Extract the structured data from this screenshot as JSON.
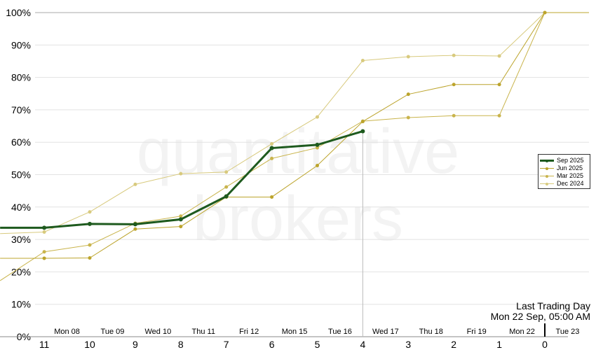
{
  "watermark": [
    "quantitative",
    "brokers"
  ],
  "chart_data": {
    "type": "line",
    "x_tick_labels": [
      "11",
      "10",
      "9",
      "8",
      "7",
      "6",
      "5",
      "4",
      "3",
      "2",
      "1",
      "0"
    ],
    "x_ticks": [
      11,
      10,
      9,
      8,
      7,
      6,
      5,
      4,
      3,
      2,
      1,
      0
    ],
    "date_labels": [
      "Mon 08",
      "Tue 09",
      "Wed 10",
      "Thu 11",
      "Fri 12",
      "Mon 15",
      "Tue 16",
      "Wed 17",
      "Thu 18",
      "Fri 19",
      "Mon 22",
      "Tue 23"
    ],
    "y_ticks": [
      0,
      10,
      20,
      30,
      40,
      50,
      60,
      70,
      80,
      90,
      100
    ],
    "y_tick_labels": [
      "0%",
      "10%",
      "20%",
      "30%",
      "40%",
      "50%",
      "60%",
      "70%",
      "80%",
      "90%",
      "100%"
    ],
    "xlim": [
      11.97,
      -0.97
    ],
    "ylim": [
      0,
      100
    ],
    "x_reversed": true,
    "grid": true,
    "legend_position": "right",
    "series": [
      {
        "name": "Sep 2025",
        "color": "#1e5a1e",
        "x": [
          11.97,
          11,
          10,
          9,
          8,
          7,
          6,
          5,
          4
        ],
        "values": [
          33.6,
          33.6,
          34.8,
          34.7,
          36.2,
          43.3,
          58.2,
          59.2,
          63.4
        ]
      },
      {
        "name": "Jun 2025",
        "color": "#bca42c",
        "x": [
          11.97,
          11,
          10,
          9,
          8,
          7,
          6,
          5,
          4,
          3,
          2,
          1,
          0,
          -0.97
        ],
        "values": [
          24.2,
          24.2,
          24.3,
          33.2,
          34.0,
          43.1,
          43.1,
          52.8,
          66.4,
          74.8,
          77.8,
          77.8,
          100,
          100
        ]
      },
      {
        "name": "Mar 2025",
        "color": "#c9b44c",
        "x": [
          11.97,
          11,
          10,
          9,
          8,
          7,
          6,
          5,
          4,
          3,
          2,
          1,
          0
        ],
        "values": [
          17.3,
          26.2,
          28.3,
          35.0,
          37.2,
          46.2,
          55.0,
          58.3,
          66.5,
          67.6,
          68.2,
          68.2,
          100
        ]
      },
      {
        "name": "Dec 2024",
        "color": "#d8ca7e",
        "x": [
          11.97,
          11,
          10,
          9,
          8,
          7,
          6,
          5,
          4,
          3,
          2,
          1,
          0
        ],
        "values": [
          31.8,
          32.3,
          38.5,
          47.0,
          50.3,
          50.8,
          59.5,
          67.8,
          85.2,
          86.4,
          86.8,
          86.6,
          100
        ]
      }
    ],
    "current_marker_x": 4,
    "last_trading_day": {
      "x": 0,
      "label_line1": "Last Trading Day",
      "label_line2": "Mon 22 Sep, 05:00 AM"
    }
  }
}
